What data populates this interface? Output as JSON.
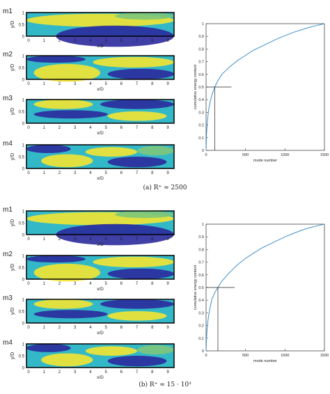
{
  "panels": [
    {
      "caption": "(a) R⁺ ≈ 2500",
      "mode_labels": [
        "m1",
        "m2",
        "m3",
        "m4"
      ],
      "mode_xlabel": "x/D",
      "mode_ylabel": "y/D",
      "mode_xticks": [
        "0",
        "1",
        "2",
        "3",
        "4",
        "5",
        "6",
        "7",
        "8",
        "9"
      ],
      "mode_yticks": [
        "0",
        "0.5",
        "1"
      ]
    },
    {
      "caption": "(b) R⁺ ≈ 15 · 10³",
      "mode_labels": [
        "m1",
        "m2",
        "m3",
        "m4"
      ],
      "mode_xlabel": "x/D",
      "mode_ylabel": "y/D",
      "mode_xticks": [
        "0",
        "1",
        "2",
        "3",
        "4",
        "5",
        "6",
        "7",
        "8",
        "9"
      ],
      "mode_yticks": [
        "0",
        "0.5",
        "1"
      ]
    }
  ],
  "colors": {
    "dark_blue": "#2b2a9c",
    "cyan": "#33b8c8",
    "yellow": "#f3e531",
    "green": "#7ec77a",
    "line": "#3e8ec9"
  },
  "chart_data": [
    {
      "type": "line",
      "xlabel": "mode number",
      "ylabel": "cumulative energy content",
      "xlim": [
        0,
        1500
      ],
      "ylim": [
        0,
        1
      ],
      "xticks": [
        0,
        500,
        1000,
        1500
      ],
      "yticks": [
        0,
        0.1,
        0.2,
        0.3,
        0.4,
        0.5,
        0.6,
        0.7,
        0.8,
        0.9,
        1
      ],
      "x": [
        0,
        5,
        15,
        30,
        50,
        75,
        110,
        150,
        200,
        300,
        400,
        500,
        600,
        700,
        800,
        900,
        1000,
        1100,
        1200,
        1300,
        1400,
        1500
      ],
      "y": [
        0,
        0.12,
        0.22,
        0.31,
        0.38,
        0.44,
        0.5,
        0.55,
        0.6,
        0.66,
        0.71,
        0.75,
        0.79,
        0.82,
        0.85,
        0.88,
        0.905,
        0.93,
        0.95,
        0.97,
        0.985,
        1.0
      ],
      "marker_x": 110,
      "marker_y": 0.5
    },
    {
      "type": "line",
      "xlabel": "mode number",
      "ylabel": "cumulative energy content",
      "xlim": [
        0,
        1500
      ],
      "ylim": [
        0,
        1
      ],
      "xticks": [
        0,
        500,
        1000,
        1500
      ],
      "yticks": [
        0,
        0.1,
        0.2,
        0.3,
        0.4,
        0.5,
        0.6,
        0.7,
        0.8,
        0.9,
        1
      ],
      "x": [
        0,
        5,
        15,
        30,
        50,
        75,
        110,
        150,
        200,
        300,
        400,
        500,
        600,
        700,
        800,
        900,
        1000,
        1100,
        1200,
        1300,
        1400,
        1500
      ],
      "y": [
        0,
        0.1,
        0.19,
        0.27,
        0.34,
        0.41,
        0.46,
        0.5,
        0.55,
        0.62,
        0.68,
        0.73,
        0.77,
        0.81,
        0.84,
        0.87,
        0.9,
        0.925,
        0.95,
        0.97,
        0.985,
        1.0
      ],
      "marker_x": 150,
      "marker_y": 0.5
    }
  ]
}
